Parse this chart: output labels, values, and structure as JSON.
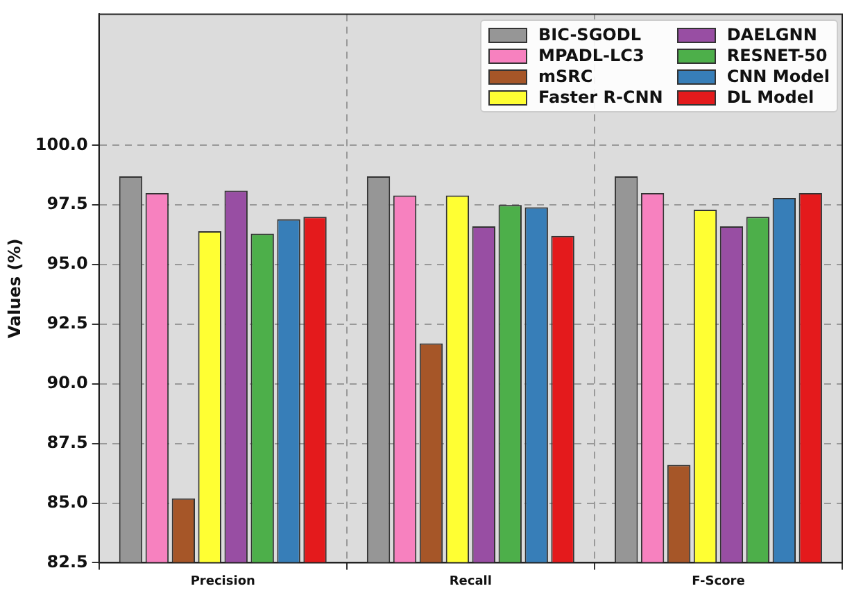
{
  "chart_data": {
    "type": "bar",
    "ylabel": "Values (%)",
    "categories": [
      "Precision",
      "Recall",
      "F-Score"
    ],
    "series": [
      {
        "name": "BIC-SGODL",
        "color": "#969696",
        "values": [
          98.7,
          98.7,
          98.7
        ]
      },
      {
        "name": "MPADL-LC3",
        "color": "#f781bf",
        "values": [
          98.0,
          97.9,
          98.0
        ]
      },
      {
        "name": "mSRC",
        "color": "#a65628",
        "values": [
          85.2,
          91.7,
          86.6
        ]
      },
      {
        "name": "Faster R-CNN",
        "color": "#ffff33",
        "values": [
          96.4,
          97.9,
          97.3
        ]
      },
      {
        "name": "DAELGNN",
        "color": "#984ea3",
        "values": [
          98.1,
          96.6,
          96.6
        ]
      },
      {
        "name": "RESNET-50",
        "color": "#4daf4a",
        "values": [
          96.3,
          97.5,
          97.0
        ]
      },
      {
        "name": "CNN Model",
        "color": "#377eb8",
        "values": [
          96.9,
          97.4,
          97.8
        ]
      },
      {
        "name": "DL Model",
        "color": "#e41a1c",
        "values": [
          97.0,
          96.2,
          98.0
        ]
      }
    ],
    "ylim": [
      82.5,
      105.5
    ],
    "yticks": [
      82.5,
      {
        "value": 85,
        "label": "85.0"
      },
      87.5,
      {
        "value": 90,
        "label": "90.0"
      },
      92.5,
      {
        "value": 95,
        "label": "95.0"
      },
      97.5,
      {
        "value": 100,
        "label": "100.0"
      }
    ],
    "grid": true,
    "legend": "top right"
  }
}
